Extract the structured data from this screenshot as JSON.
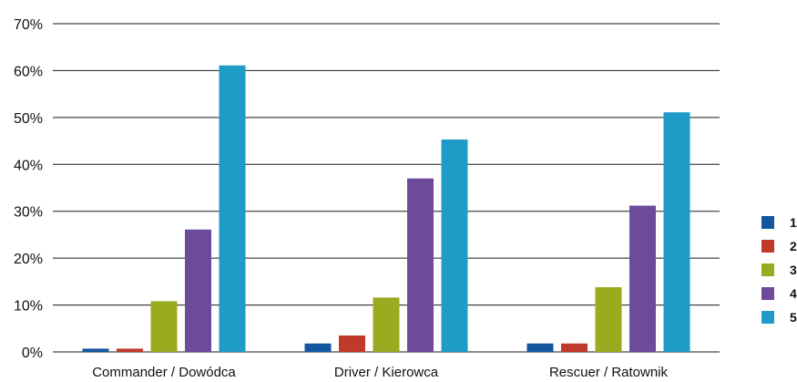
{
  "chart_data": {
    "type": "bar",
    "categories": [
      "Commander / Dowódca",
      "Driver / Kierowca",
      "Rescuer / Ratownik"
    ],
    "series": [
      {
        "name": "1",
        "color": "#1457a0",
        "values": [
          0.7,
          1.8,
          1.8
        ]
      },
      {
        "name": "2",
        "color": "#c0392b",
        "values": [
          0.7,
          3.5,
          1.8
        ]
      },
      {
        "name": "3",
        "color": "#9aab1f",
        "values": [
          10.8,
          11.6,
          13.8
        ]
      },
      {
        "name": "4",
        "color": "#6c4b9a",
        "values": [
          26.1,
          37.0,
          31.2
        ]
      },
      {
        "name": "5",
        "color": "#1e9bc7",
        "values": [
          61.1,
          45.3,
          51.1
        ]
      }
    ],
    "yticks": [
      "0%",
      "10%",
      "20%",
      "30%",
      "40%",
      "50%",
      "60%",
      "70%"
    ],
    "ylim": [
      0,
      70
    ],
    "grid": true,
    "legend_position": "right"
  }
}
